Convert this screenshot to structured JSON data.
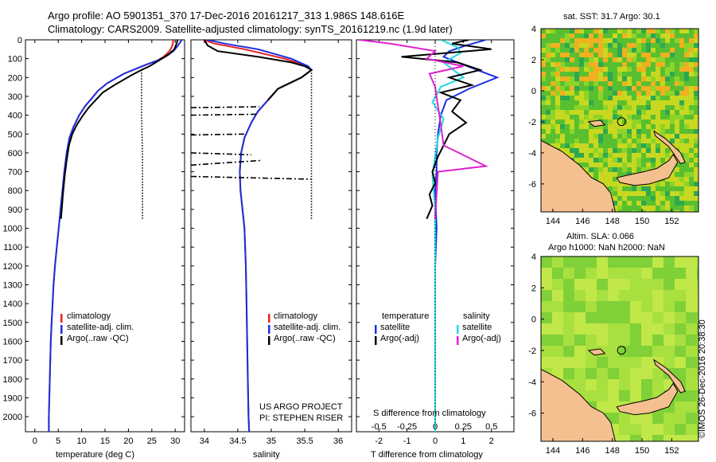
{
  "header": {
    "line1": "Argo profile: AO 5901351_370 17-Dec-2016 20161217_313 1.986S 148.616E",
    "line2": "Climatology: CARS2009. Satellite-adjusted climatology: synTS_20161219.nc (1.9d later)"
  },
  "colors": {
    "climatology": "#e8201e",
    "satellite": "#1a2fe0",
    "argo": "#000000",
    "sat_salinity": "#22d8e0",
    "argo_salinity": "#e020d0",
    "land": "#f5c090",
    "sea_base": "#4fbf2a"
  },
  "chart_data": [
    {
      "type": "line",
      "id": "temperature",
      "xlabel": "temperature (deg C)",
      "xlim": [
        -2,
        32
      ],
      "xticks": [
        0,
        5,
        10,
        15,
        20,
        25,
        30
      ],
      "ylim": [
        2080,
        0
      ],
      "yticks": [
        0,
        100,
        200,
        300,
        400,
        500,
        600,
        700,
        800,
        900,
        1000,
        1100,
        1200,
        1300,
        1400,
        1500,
        1600,
        1700,
        1800,
        1900,
        2000
      ],
      "legend": {
        "placement": "lower-left",
        "entries": [
          {
            "label": "climatology",
            "color": "#e8201e"
          },
          {
            "label": "satellite-adj. clim.",
            "color": "#1a2fe0"
          },
          {
            "label": "Argo(..raw -QC)",
            "color": "#000000"
          }
        ]
      },
      "series": [
        {
          "name": "climatology",
          "color": "#e8201e",
          "x": [
            29.6,
            29.4,
            28.8,
            27.5,
            26.2,
            24.0,
            19.0,
            15.5,
            13.5,
            12.2,
            10.8,
            9.5,
            8.3,
            7.4,
            6.8,
            6.3,
            5.9,
            5.5,
            5.1,
            4.7,
            4.3,
            4.0,
            3.8,
            3.6,
            3.4,
            3.3,
            3.2,
            3.1,
            3.0,
            3.0
          ],
          "y": [
            0,
            30,
            60,
            90,
            110,
            130,
            180,
            230,
            270,
            310,
            350,
            400,
            460,
            520,
            600,
            700,
            800,
            900,
            1000,
            1100,
            1200,
            1300,
            1400,
            1500,
            1600,
            1700,
            1800,
            1900,
            2000,
            2080
          ]
        },
        {
          "name": "satellite-adj. clim.",
          "color": "#1a2fe0",
          "x": [
            31.4,
            30.6,
            29.6,
            27.8,
            26.2,
            23.9,
            19.0,
            15.5,
            13.5,
            12.2,
            10.8,
            9.5,
            8.3,
            7.4,
            6.8,
            6.3,
            5.9,
            5.5,
            5.1,
            4.7,
            4.3,
            4.0,
            3.8,
            3.6,
            3.4,
            3.3,
            3.2,
            3.1,
            3.0,
            3.0
          ],
          "y": [
            0,
            30,
            60,
            90,
            110,
            130,
            180,
            230,
            270,
            310,
            350,
            400,
            460,
            520,
            600,
            700,
            800,
            900,
            1000,
            1100,
            1200,
            1300,
            1400,
            1500,
            1600,
            1700,
            1800,
            1900,
            2000,
            2080
          ]
        },
        {
          "name": "Argo(..raw -QC)",
          "color": "#000000",
          "x": [
            30.5,
            30.3,
            29.8,
            28.5,
            26.5,
            24.5,
            22.8,
            20.5,
            17.0,
            14.5,
            13.0,
            11.5,
            10.3,
            9.0,
            8.0,
            7.3,
            6.8,
            6.4,
            6.0,
            5.6
          ],
          "y": [
            0,
            20,
            50,
            80,
            110,
            140,
            160,
            190,
            240,
            280,
            320,
            360,
            400,
            450,
            500,
            560,
            640,
            720,
            820,
            950
          ]
        },
        {
          "name": "Argo dotted",
          "color": "#000000",
          "style": "dotted",
          "x": [
            22.8,
            22.8,
            23.0,
            23.0
          ],
          "y": [
            160,
            400,
            600,
            950
          ]
        }
      ]
    },
    {
      "type": "line",
      "id": "salinity",
      "xlabel": "salinity",
      "xlim": [
        33.8,
        36.2
      ],
      "xticks": [
        34,
        34.5,
        35,
        35.5,
        36
      ],
      "ylim": [
        2080,
        0
      ],
      "legend": {
        "placement": "lower-right",
        "entries": [
          {
            "label": "climatology",
            "color": "#e8201e"
          },
          {
            "label": "satellite-adj. clim.",
            "color": "#1a2fe0"
          },
          {
            "label": "Argo(..raw -QC)",
            "color": "#000000"
          }
        ]
      },
      "annotations": [
        "US ARGO PROJECT",
        "PI: STEPHEN RISER"
      ],
      "series": [
        {
          "name": "climatology",
          "color": "#e8201e",
          "x": [
            34.0,
            34.15,
            34.6,
            35.2,
            35.55,
            35.6,
            35.45,
            35.1,
            34.95,
            34.8,
            34.7,
            34.6,
            34.55,
            34.53,
            34.54,
            34.57,
            34.6,
            34.62,
            34.63,
            34.64,
            34.65,
            34.66,
            34.67
          ],
          "y": [
            0,
            20,
            50,
            100,
            140,
            160,
            200,
            260,
            320,
            380,
            440,
            520,
            600,
            700,
            800,
            900,
            1000,
            1200,
            1400,
            1600,
            1800,
            2000,
            2080
          ]
        },
        {
          "name": "satellite-adj. clim.",
          "color": "#1a2fe0",
          "x": [
            34.05,
            34.3,
            34.8,
            35.3,
            35.55,
            35.6,
            35.45,
            35.1,
            34.95,
            34.8,
            34.7,
            34.6,
            34.55,
            34.53,
            34.54,
            34.57,
            34.6,
            34.62,
            34.63,
            34.64,
            34.65,
            34.66,
            34.67
          ],
          "y": [
            0,
            20,
            50,
            100,
            140,
            160,
            200,
            260,
            320,
            380,
            440,
            520,
            600,
            700,
            800,
            900,
            1000,
            1200,
            1400,
            1600,
            1800,
            2000,
            2080
          ]
        },
        {
          "name": "Argo(..raw -QC)",
          "color": "#000000",
          "x": [
            34.0,
            34.05,
            34.2,
            34.8,
            35.3,
            35.5,
            35.6,
            35.45,
            35.1,
            34.95
          ],
          "y": [
            0,
            30,
            60,
            90,
            120,
            140,
            160,
            200,
            260,
            320
          ]
        },
        {
          "name": "Argo dotted",
          "color": "#000000",
          "style": "dotted",
          "x": [
            35.6,
            35.6,
            35.6
          ],
          "y": [
            160,
            600,
            950
          ]
        },
        {
          "name": "spike 1",
          "color": "#000000",
          "style": "dashdot",
          "x": [
            33.8,
            34.82
          ],
          "y": [
            360,
            355
          ]
        },
        {
          "name": "spike 2",
          "color": "#000000",
          "style": "dashdot",
          "x": [
            33.8,
            34.78
          ],
          "y": [
            400,
            395
          ]
        },
        {
          "name": "spike 3",
          "color": "#000000",
          "style": "dashdot",
          "x": [
            33.8,
            34.6
          ],
          "y": [
            505,
            500
          ]
        },
        {
          "name": "spike 4",
          "color": "#000000",
          "style": "dashdot",
          "x": [
            33.8,
            34.7
          ],
          "y": [
            600,
            610
          ]
        },
        {
          "name": "spike 5",
          "color": "#000000",
          "style": "dashdot",
          "x": [
            33.8,
            34.85
          ],
          "y": [
            665,
            640
          ]
        },
        {
          "name": "spike 6",
          "color": "#000000",
          "style": "dashdot",
          "x": [
            33.8,
            35.6
          ],
          "y": [
            725,
            740
          ]
        }
      ]
    },
    {
      "type": "line",
      "id": "difference",
      "xlabel": "T difference from climatology",
      "xlabel2": "S difference from climatology",
      "xlim": [
        -2.8,
        2.8
      ],
      "xticks": [
        -2,
        -1,
        0,
        1,
        2
      ],
      "xticks2": [
        "-0.5",
        "-0.25",
        "0",
        "0.25",
        "0.5"
      ],
      "ylim": [
        2080,
        0
      ],
      "legend": {
        "placement": "lower",
        "entries": [
          {
            "label": "temperature",
            "color": null
          },
          {
            "label": "salinity",
            "color": null
          },
          {
            "label": "satellite",
            "color": "#1a2fe0"
          },
          {
            "label": "satellite",
            "color": "#22d8e0"
          },
          {
            "label": "Argo(-adj)",
            "color": "#000000"
          },
          {
            "label": "Argo(-adj)",
            "color": "#e020d0"
          }
        ]
      },
      "series": [
        {
          "name": "temperature satellite",
          "color": "#1a2fe0",
          "x": [
            1.8,
            1.1,
            0.5,
            0.3,
            0.8,
            2.2,
            1.2,
            0.4,
            0.2,
            0.1,
            0.05,
            0.05,
            0.0,
            0.05,
            0.0,
            0.0,
            0.0,
            0.0,
            0.0,
            0.0
          ],
          "y": [
            0,
            30,
            60,
            90,
            120,
            200,
            260,
            320,
            400,
            500,
            600,
            700,
            800,
            1000,
            1200,
            1400,
            1600,
            1800,
            2000,
            2080
          ]
        },
        {
          "name": "salinity satellite",
          "color": "#22d8e0",
          "x": [
            0.2,
            0.8,
            0.9,
            0.3,
            1.0,
            0.2,
            -0.1,
            0.3,
            0.1,
            0.0,
            -0.1,
            0.0,
            0.0,
            0.0,
            0.0,
            0.0,
            0.0,
            0.0
          ],
          "y": [
            0,
            40,
            70,
            120,
            200,
            250,
            330,
            420,
            520,
            620,
            720,
            900,
            1100,
            1300,
            1500,
            1700,
            1900,
            2080
          ]
        },
        {
          "name": "temperature Argo(-adj)",
          "color": "#000000",
          "x": [
            1.2,
            0.6,
            2.0,
            -1.2,
            0.8,
            1.6,
            0.5,
            1.3,
            0.2,
            0.9,
            0.6,
            1.1,
            0.5,
            0.3,
            0.1,
            -0.1,
            0.0,
            -0.2,
            -0.1,
            -0.3
          ],
          "y": [
            0,
            20,
            50,
            90,
            120,
            160,
            200,
            240,
            280,
            320,
            380,
            440,
            500,
            560,
            620,
            700,
            760,
            820,
            880,
            950
          ]
        },
        {
          "name": "salinity Argo(-adj)",
          "color": "#e020d0",
          "x": [
            -2.7,
            -1.6,
            0.0,
            -0.3,
            1.0,
            -0.2,
            0.0,
            0.1,
            0.2,
            0.3,
            1.8,
            0.1,
            0.0
          ],
          "y": [
            0,
            20,
            60,
            100,
            140,
            180,
            250,
            350,
            450,
            560,
            670,
            700,
            950
          ]
        }
      ]
    },
    {
      "type": "heatmap",
      "id": "sst-map",
      "title": "sat. SST: 31.7 Argo: 30.1",
      "xticks": [
        144,
        146,
        148,
        150,
        152
      ],
      "yticks": [
        4,
        2,
        0,
        -2,
        -4,
        -6
      ],
      "xlim": [
        143.2,
        153.8
      ],
      "ylim": [
        -7.8,
        4.0
      ],
      "marker": {
        "lon": 148.616,
        "lat": -1.986
      }
    },
    {
      "type": "heatmap",
      "id": "sla-map",
      "title": "Altim. SLA: 0.066",
      "subtitle": "Argo h1000: NaN h2000: NaN",
      "xticks": [
        144,
        146,
        148,
        150,
        152
      ],
      "yticks": [
        4,
        2,
        0,
        -2,
        -4,
        -6
      ],
      "xlim": [
        143.2,
        153.8
      ],
      "ylim": [
        -7.8,
        4.0
      ],
      "marker": {
        "lon": 148.616,
        "lat": -1.986
      }
    }
  ],
  "footer_stamp": "©IMOS 26-Dec-2016 20:38:30"
}
